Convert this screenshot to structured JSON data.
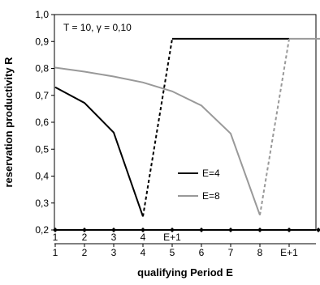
{
  "chart_data": {
    "type": "line",
    "annotation": "T = 10, γ = 0,10",
    "ylabel": "reservation productivity R",
    "xlabel": "qualifying Period E",
    "ylim": [
      0.2,
      1.0
    ],
    "yticks": [
      0.2,
      0.3,
      0.4,
      0.5,
      0.6,
      0.7,
      0.8,
      0.9,
      1.0
    ],
    "ytick_labels": [
      "0,2",
      "0,3",
      "0,4",
      "0,5",
      "0,6",
      "0,7",
      "0,8",
      "0,9",
      "1,0"
    ],
    "x_positions": [
      1,
      2,
      3,
      4,
      5,
      6,
      7,
      8,
      9,
      10,
      11
    ],
    "x_tick_labels_row1": [
      "1",
      "2",
      "3",
      "4",
      "E+1"
    ],
    "x_tick_labels_row2": [
      "1",
      "2",
      "3",
      "4",
      "5",
      "6",
      "7",
      "8",
      "E+1"
    ],
    "legend_position": "center-right",
    "series": [
      {
        "name": "E=4",
        "color": "#000000",
        "solid": [
          [
            1,
            0.73
          ],
          [
            2,
            0.672
          ],
          [
            3,
            0.562
          ],
          [
            4,
            0.25
          ]
        ],
        "dashed": [
          [
            4,
            0.25
          ],
          [
            5,
            0.91
          ]
        ],
        "flat": [
          [
            5,
            0.91
          ],
          [
            9,
            0.91
          ]
        ]
      },
      {
        "name": "E=8",
        "color": "#999999",
        "solid": [
          [
            1,
            0.803
          ],
          [
            2,
            0.788
          ],
          [
            3,
            0.77
          ],
          [
            4,
            0.748
          ],
          [
            5,
            0.715
          ],
          [
            6,
            0.662
          ],
          [
            7,
            0.558
          ],
          [
            8,
            0.255
          ]
        ],
        "dashed": [
          [
            8,
            0.255
          ],
          [
            9,
            0.91
          ]
        ],
        "flat": [
          [
            9,
            0.91
          ],
          [
            11,
            0.91
          ]
        ]
      }
    ]
  }
}
